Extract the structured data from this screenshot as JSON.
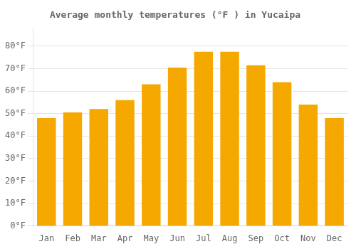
{
  "chart_data": {
    "type": "bar",
    "title": "Average monthly temperatures (°F ) in Yucaipa",
    "categories": [
      "Jan",
      "Feb",
      "Mar",
      "Apr",
      "May",
      "Jun",
      "Jul",
      "Aug",
      "Sep",
      "Oct",
      "Nov",
      "Dec"
    ],
    "values": [
      48,
      50.5,
      52,
      56,
      63,
      70.5,
      77.5,
      77.5,
      71.5,
      64,
      54,
      48
    ],
    "color": "#F5A800",
    "ylim": [
      0,
      88
    ],
    "yticks": [
      {
        "value": 0,
        "label": "0°F"
      },
      {
        "value": 10,
        "label": "10°F"
      },
      {
        "value": 20,
        "label": "20°F"
      },
      {
        "value": 30,
        "label": "30°F"
      },
      {
        "value": 40,
        "label": "40°F"
      },
      {
        "value": 50,
        "label": "50°F"
      },
      {
        "value": 60,
        "label": "60°F"
      },
      {
        "value": 70,
        "label": "70°F"
      },
      {
        "value": 80,
        "label": "80°F"
      }
    ],
    "grid": true
  }
}
